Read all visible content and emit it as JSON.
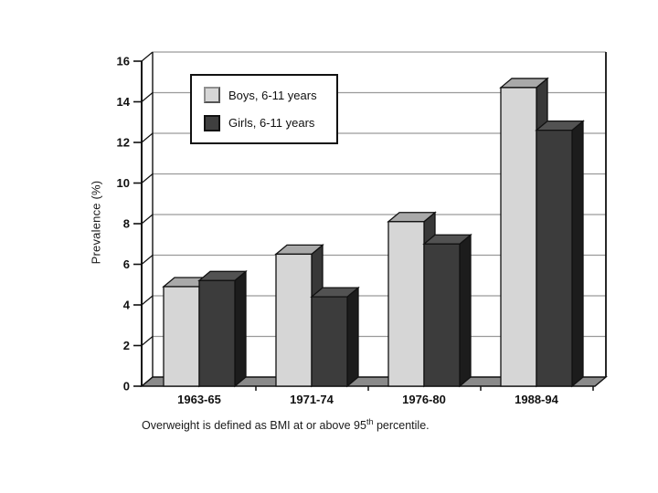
{
  "chart_data": {
    "type": "bar",
    "style": "3d",
    "title": "",
    "categories": [
      "1963-65",
      "1971-74",
      "1976-80",
      "1988-94"
    ],
    "series": [
      {
        "name": "Boys, 6-11 years",
        "values": [
          4.9,
          6.5,
          8.1,
          14.7
        ],
        "color_front": "#d6d6d6",
        "color_top": "#a9a9a9",
        "color_side": "#383838"
      },
      {
        "name": "Girls, 6-11 years",
        "values": [
          5.2,
          4.4,
          7.0,
          12.6
        ],
        "color_front": "#3c3c3c",
        "color_top": "#525252",
        "color_side": "#1c1c1c"
      }
    ],
    "xlabel": "",
    "ylabel": "Prevalence (%)",
    "ylim": [
      0,
      16
    ],
    "ytick_step": 2,
    "grid": "horizontal",
    "legend_position": "top-left-inside"
  },
  "colors": {
    "background": "#ffffff",
    "gridline": "#9a9a9a",
    "axis": "#111111",
    "floor": "#8a8a8a",
    "text": "#111111"
  },
  "footnote": {
    "prefix": "Overweight is defined as BMI at or above 95",
    "superscript": "th",
    "suffix": " percentile."
  }
}
